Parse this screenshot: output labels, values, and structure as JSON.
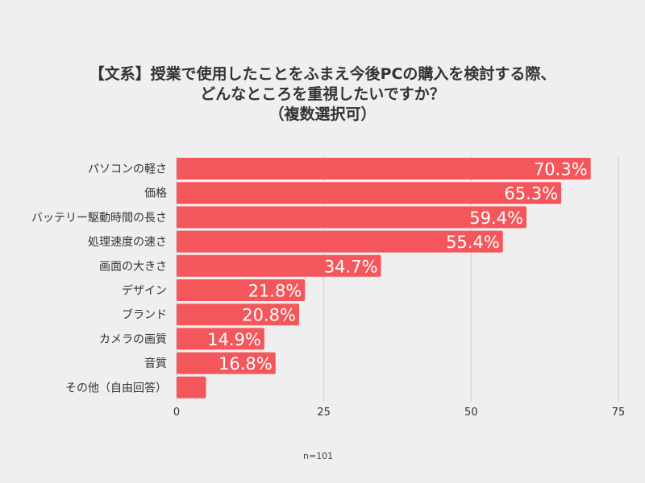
{
  "title_lines": [
    "【文系】授業で使用したことをふまえ今後PCの購入を検討する際、",
    "どんなところを重視したいですか？",
    "（複数選択可）"
  ],
  "footnote": "n=101",
  "colors": {
    "bar": "#f4575b",
    "grid": "#cccccc",
    "label": "#333333",
    "value_text": "#ffffff",
    "background": "#efefef"
  },
  "chart_data": {
    "type": "bar",
    "orientation": "horizontal",
    "categories": [
      "パソコンの軽さ",
      "価格",
      "バッテリー駆動時間の長さ",
      "処理速度の速さ",
      "画面の大きさ",
      "デザイン",
      "ブランド",
      "カメラの画質",
      "音質",
      "その他（自由回答）"
    ],
    "values": [
      70.3,
      65.3,
      59.4,
      55.4,
      34.7,
      21.8,
      20.8,
      14.9,
      16.8,
      5.0
    ],
    "value_labels": [
      "70.3%",
      "65.3%",
      "59.4%",
      "55.4%",
      "34.7%",
      "21.8%",
      "20.8%",
      "14.9%",
      "16.8%",
      ""
    ],
    "x_ticks": [
      0,
      25,
      50,
      75
    ],
    "xlim": [
      0,
      75
    ],
    "grid": true,
    "legend": "none"
  }
}
